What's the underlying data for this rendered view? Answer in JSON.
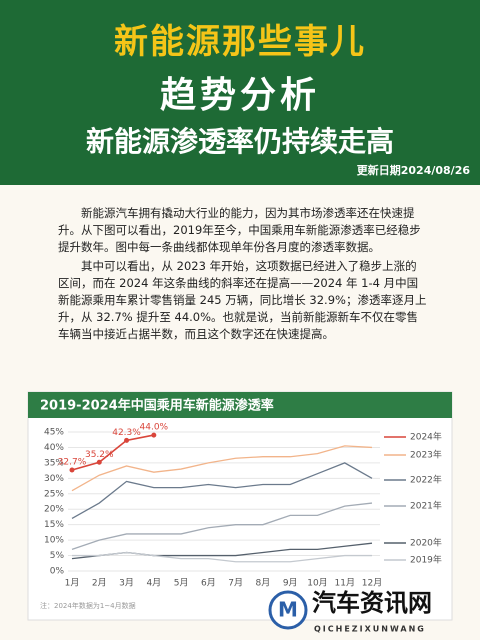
{
  "header": {
    "brand": "新能源那些事儿",
    "title": "趋势分析",
    "subtitle": "新能源渗透率仍持续走高",
    "date": "更新日期2024/08/26"
  },
  "paragraphs": [
    "新能源汽车拥有撬动大行业的能力，因为其市场渗透率还在快速提升。从下图可以看出，2019年至今，中国乘用车新能源渗透率已经稳步提升数年。图中每一条曲线都体现单年份各月度的渗透率数据。",
    "其中可以看出，从 2023 年开始，这项数据已经进入了稳步上涨的区间，而在 2024 年这条曲线的斜率还在提高——2024 年 1-4 月中国新能源乘用车累计零售销量 245 万辆，同比增长 32.9%；渗透率逐月上升，从 32.7% 提升至 44.0%。也就是说，当前新能源新车不仅在零售车辆当中接近占据半数，而且这个数字还在快速提高。"
  ],
  "chart_data": {
    "type": "line",
    "title": "2019-2024年中国乘用车新能源渗透率",
    "note": "注：2024年数据为1~4月数据",
    "categories": [
      "1月",
      "2月",
      "3月",
      "4月",
      "5月",
      "6月",
      "7月",
      "8月",
      "9月",
      "10月",
      "11月",
      "12月"
    ],
    "ylim": [
      0,
      45
    ],
    "yticks": [
      {
        "value": 0,
        "label": "0%"
      },
      {
        "value": 5,
        "label": "5%"
      },
      {
        "value": 10,
        "label": "10%"
      },
      {
        "value": 15,
        "label": "15%"
      },
      {
        "value": 20,
        "label": "20%"
      },
      {
        "value": 25,
        "label": "25%"
      },
      {
        "value": 30,
        "label": "30%"
      },
      {
        "value": 35,
        "label": "35%"
      },
      {
        "value": 40,
        "label": "40%"
      },
      {
        "value": 45,
        "label": "45%"
      }
    ],
    "grid": true,
    "series": [
      {
        "name": "2024年",
        "color": "#d9453a",
        "values": [
          32.7,
          35.2,
          42.3,
          44.0,
          null,
          null,
          null,
          null,
          null,
          null,
          null,
          null
        ],
        "value_labels": [
          "32.7%",
          "35.2%",
          "42.3%",
          "44.0%",
          null,
          null,
          null,
          null,
          null,
          null,
          null,
          null
        ]
      },
      {
        "name": "2023年",
        "color": "#f2b48a",
        "values": [
          26,
          31,
          34,
          32,
          33,
          35,
          36.5,
          37,
          37,
          38,
          40.5,
          40
        ]
      },
      {
        "name": "2022年",
        "color": "#6b7a8c",
        "values": [
          17,
          22,
          29,
          27,
          27,
          28,
          27,
          28,
          28,
          31.5,
          35,
          30
        ]
      },
      {
        "name": "2021年",
        "color": "#a3abb5",
        "values": [
          7,
          10,
          12,
          12,
          12,
          14,
          15,
          15,
          18,
          18,
          21,
          22
        ]
      },
      {
        "name": "2020年",
        "color": "#55606c",
        "values": [
          4,
          5,
          6,
          5,
          5,
          5,
          5,
          6,
          7,
          7,
          8,
          9
        ]
      },
      {
        "name": "2019年",
        "color": "#c4c9cf",
        "values": [
          5,
          5,
          6,
          5,
          4,
          4,
          3,
          3,
          3,
          4,
          5,
          5
        ]
      }
    ]
  },
  "watermark": {
    "name": "汽车资讯网",
    "pinyin": "QICHEZIXUNWANG"
  }
}
